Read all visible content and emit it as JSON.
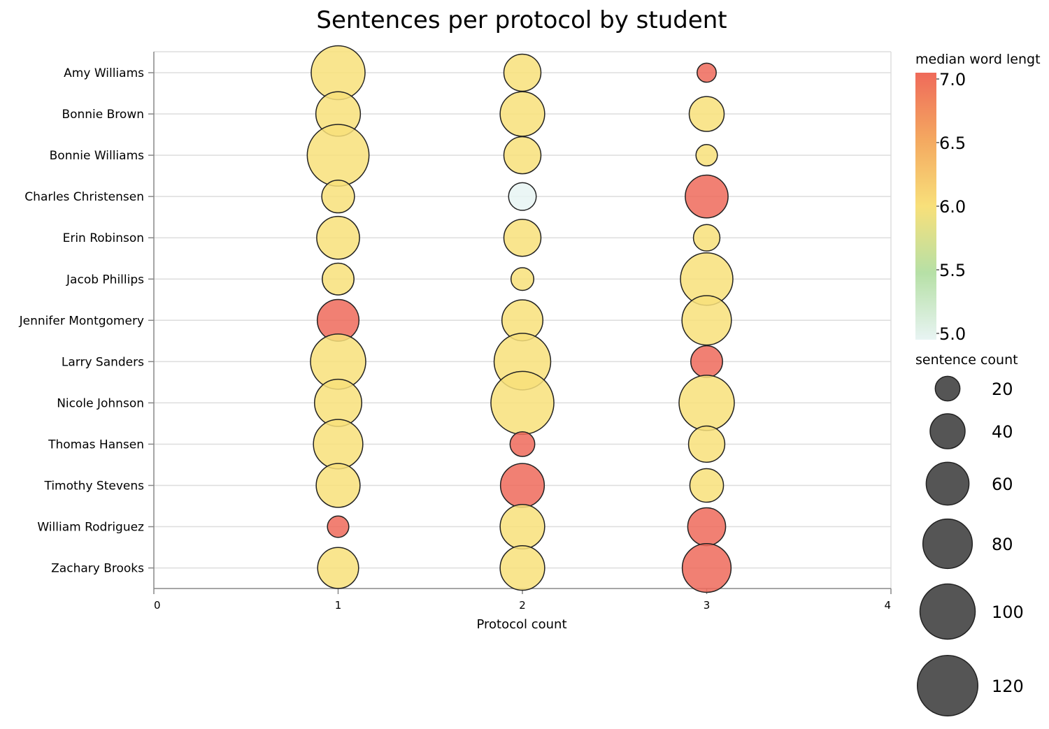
{
  "chart_data": {
    "type": "scatter",
    "title": "Sentences per protocol by student",
    "xlabel": "Protocol count",
    "ylabel": "",
    "xlim": [
      0,
      4
    ],
    "x_ticks": [
      "0",
      "1",
      "2",
      "3",
      "4"
    ],
    "grid": true,
    "legend_position": "right",
    "categories": [
      "Amy Williams",
      "Bonnie Brown",
      "Bonnie Williams",
      "Charles Christensen",
      "Erin Robinson",
      "Jacob Phillips",
      "Jennifer Montgomery",
      "Larry Sanders",
      "Nicole Johnson",
      "Thomas Hansen",
      "Timothy Stevens",
      "William Rodriguez",
      "Zachary Brooks"
    ],
    "points": [
      {
        "student": "Amy Williams",
        "protocol": 1,
        "sentences": 95,
        "median_word_length": 6.0
      },
      {
        "student": "Amy Williams",
        "protocol": 2,
        "sentences": 45,
        "median_word_length": 6.0
      },
      {
        "student": "Amy Williams",
        "protocol": 3,
        "sentences": 12,
        "median_word_length": 7.0
      },
      {
        "student": "Bonnie Brown",
        "protocol": 1,
        "sentences": 65,
        "median_word_length": 6.0
      },
      {
        "student": "Bonnie Brown",
        "protocol": 2,
        "sentences": 65,
        "median_word_length": 6.0
      },
      {
        "student": "Bonnie Brown",
        "protocol": 3,
        "sentences": 40,
        "median_word_length": 6.0
      },
      {
        "student": "Bonnie Williams",
        "protocol": 1,
        "sentences": 125,
        "median_word_length": 6.0
      },
      {
        "student": "Bonnie Williams",
        "protocol": 2,
        "sentences": 45,
        "median_word_length": 6.0
      },
      {
        "student": "Bonnie Williams",
        "protocol": 3,
        "sentences": 15,
        "median_word_length": 6.0
      },
      {
        "student": "Charles Christensen",
        "protocol": 1,
        "sentences": 35,
        "median_word_length": 6.0
      },
      {
        "student": "Charles Christensen",
        "protocol": 2,
        "sentences": 25,
        "median_word_length": 5.0
      },
      {
        "student": "Charles Christensen",
        "protocol": 3,
        "sentences": 60,
        "median_word_length": 7.0
      },
      {
        "student": "Erin Robinson",
        "protocol": 1,
        "sentences": 60,
        "median_word_length": 6.0
      },
      {
        "student": "Erin Robinson",
        "protocol": 2,
        "sentences": 45,
        "median_word_length": 6.0
      },
      {
        "student": "Erin Robinson",
        "protocol": 3,
        "sentences": 23,
        "median_word_length": 6.0
      },
      {
        "student": "Jacob Phillips",
        "protocol": 1,
        "sentences": 33,
        "median_word_length": 6.0
      },
      {
        "student": "Jacob Phillips",
        "protocol": 2,
        "sentences": 17,
        "median_word_length": 6.0
      },
      {
        "student": "Jacob Phillips",
        "protocol": 3,
        "sentences": 90,
        "median_word_length": 6.0
      },
      {
        "student": "Jennifer Montgomery",
        "protocol": 1,
        "sentences": 57,
        "median_word_length": 7.0
      },
      {
        "student": "Jennifer Montgomery",
        "protocol": 2,
        "sentences": 55,
        "median_word_length": 6.0
      },
      {
        "student": "Jennifer Montgomery",
        "protocol": 3,
        "sentences": 80,
        "median_word_length": 6.0
      },
      {
        "student": "Larry Sanders",
        "protocol": 1,
        "sentences": 100,
        "median_word_length": 6.0
      },
      {
        "student": "Larry Sanders",
        "protocol": 2,
        "sentences": 105,
        "median_word_length": 6.0
      },
      {
        "student": "Larry Sanders",
        "protocol": 3,
        "sentences": 33,
        "median_word_length": 7.0
      },
      {
        "student": "Nicole Johnson",
        "protocol": 1,
        "sentences": 73,
        "median_word_length": 6.0
      },
      {
        "student": "Nicole Johnson",
        "protocol": 2,
        "sentences": 130,
        "median_word_length": 6.0
      },
      {
        "student": "Nicole Johnson",
        "protocol": 3,
        "sentences": 100,
        "median_word_length": 6.0
      },
      {
        "student": "Thomas Hansen",
        "protocol": 1,
        "sentences": 80,
        "median_word_length": 6.0
      },
      {
        "student": "Thomas Hansen",
        "protocol": 2,
        "sentences": 20,
        "median_word_length": 7.0
      },
      {
        "student": "Thomas Hansen",
        "protocol": 3,
        "sentences": 43,
        "median_word_length": 6.0
      },
      {
        "student": "Timothy Stevens",
        "protocol": 1,
        "sentences": 63,
        "median_word_length": 6.0
      },
      {
        "student": "Timothy Stevens",
        "protocol": 2,
        "sentences": 63,
        "median_word_length": 7.0
      },
      {
        "student": "Timothy Stevens",
        "protocol": 3,
        "sentences": 37,
        "median_word_length": 6.0
      },
      {
        "student": "William Rodriguez",
        "protocol": 1,
        "sentences": 15,
        "median_word_length": 7.0
      },
      {
        "student": "William Rodriguez",
        "protocol": 2,
        "sentences": 65,
        "median_word_length": 6.0
      },
      {
        "student": "William Rodriguez",
        "protocol": 3,
        "sentences": 47,
        "median_word_length": 7.0
      },
      {
        "student": "Zachary Brooks",
        "protocol": 1,
        "sentences": 55,
        "median_word_length": 6.0
      },
      {
        "student": "Zachary Brooks",
        "protocol": 2,
        "sentences": 65,
        "median_word_length": 6.0
      },
      {
        "student": "Zachary Brooks",
        "protocol": 3,
        "sentences": 78,
        "median_word_length": 7.0
      }
    ],
    "color_legend": {
      "title": "median word lengt",
      "ticks": [
        "7.0",
        "6.5",
        "6.0",
        "5.5",
        "5.0"
      ],
      "domain": [
        5.0,
        7.0
      ],
      "stops": [
        {
          "value": 5.0,
          "color": "#e8f4f3"
        },
        {
          "value": 5.5,
          "color": "#b6e0a6"
        },
        {
          "value": 6.0,
          "color": "#f8e07a"
        },
        {
          "value": 6.5,
          "color": "#f4a860"
        },
        {
          "value": 7.0,
          "color": "#ef6a5a"
        }
      ]
    },
    "size_legend": {
      "title": "sentence count",
      "values": [
        20,
        40,
        60,
        80,
        100,
        120
      ],
      "labels": [
        "20",
        "40",
        "60",
        "80",
        "100",
        "120"
      ],
      "color": "#555555"
    }
  }
}
